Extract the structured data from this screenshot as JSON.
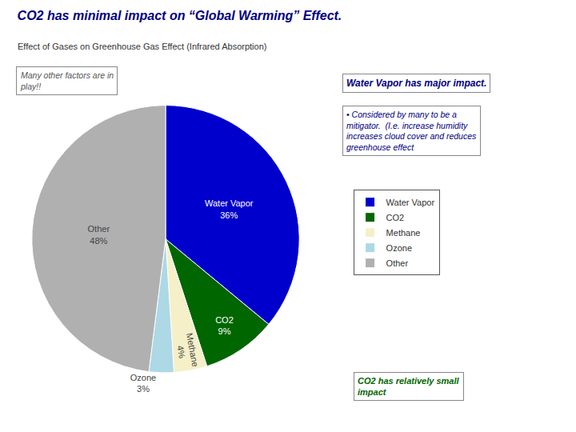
{
  "chart_data": {
    "type": "pie",
    "title": "CO2 has minimal impact on “Global Warming” Effect.",
    "subtitle": "Effect of Gases on Greenhouse Gas Effect (Infrared Absorption)",
    "categories": [
      "Water Vapor",
      "CO2",
      "Methane",
      "Ozone",
      "Other"
    ],
    "values": [
      36,
      9,
      4,
      3,
      48
    ],
    "value_labels": [
      "36%",
      "9%",
      "4%",
      "3%",
      "48%"
    ],
    "data_labels": true,
    "colors": [
      "#0000cc",
      "#006600",
      "#f5f0c8",
      "#add8e6",
      "#b0b0b0"
    ],
    "legend": "right",
    "annotations": [
      "Water Vapor has major impact.",
      "• Considered by many to be a\nmitigator.  (I.e. increase humidity\nincreases cloud cover and reduces\ngreenhouse effect",
      "Many other factors are in\nplay!!",
      "CO2 has relatively small\nimpact"
    ]
  }
}
